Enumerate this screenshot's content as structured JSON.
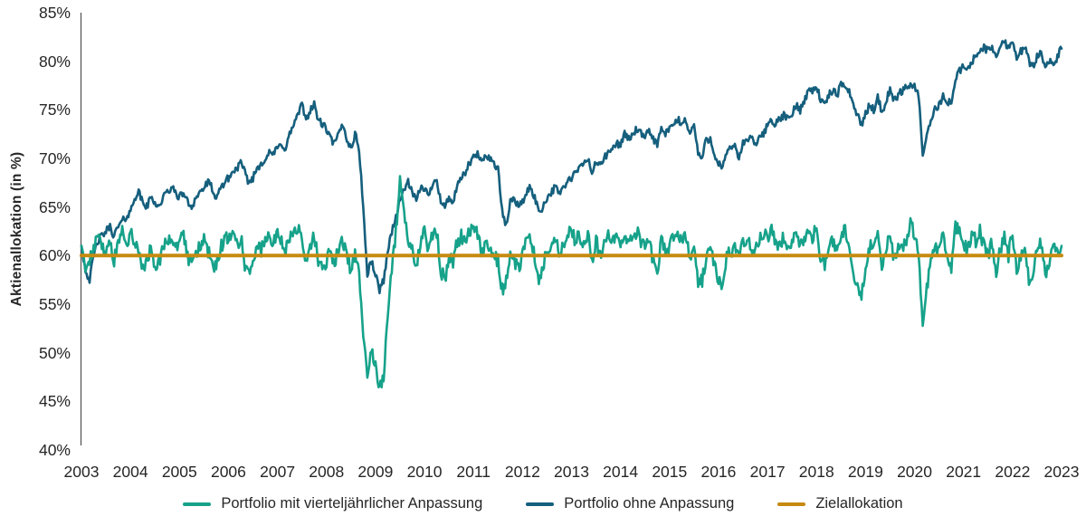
{
  "chart_data": {
    "type": "line",
    "title": "",
    "xlabel": "",
    "ylabel": "Aktienallokation (in %)",
    "ylim": [
      40,
      85
    ],
    "xlim": [
      2003,
      2023
    ],
    "grid": false,
    "legend_position": "bottom",
    "text_color": "#262626",
    "axis_color": "#58595B",
    "y_ticks": [
      "85%",
      "80%",
      "75%",
      "70%",
      "65%",
      "60%",
      "55%",
      "50%",
      "45%",
      "40%"
    ],
    "y_tick_values": [
      85,
      80,
      75,
      70,
      65,
      60,
      55,
      50,
      45,
      40
    ],
    "x_ticks": [
      "2003",
      "2004",
      "2005",
      "2006",
      "2007",
      "2008",
      "2009",
      "2010",
      "2011",
      "2012",
      "2013",
      "2014",
      "2015",
      "2016",
      "2017",
      "2018",
      "2019",
      "2020",
      "2021",
      "2022",
      "2023"
    ],
    "x_start_year": 2003,
    "x_step_months": 1,
    "series": [
      {
        "name": "Portfolio ohne Anpassung",
        "color": "#155F7D",
        "line_width": 2.6,
        "noise": 0.4,
        "values": [
          61.0,
          58.5,
          57.5,
          60.0,
          61.5,
          62.0,
          62.5,
          63.0,
          62.0,
          63.0,
          63.5,
          64.0,
          64.5,
          66.0,
          66.5,
          65.5,
          65.0,
          66.0,
          65.5,
          65.0,
          66.0,
          66.5,
          67.0,
          66.5,
          66.0,
          66.5,
          65.5,
          65.0,
          66.0,
          66.5,
          67.0,
          67.5,
          67.0,
          65.5,
          67.0,
          67.5,
          68.0,
          68.5,
          69.0,
          69.5,
          68.5,
          67.5,
          68.0,
          69.0,
          69.5,
          70.0,
          70.5,
          70.5,
          71.0,
          71.5,
          71.0,
          72.5,
          73.5,
          74.5,
          75.5,
          74.0,
          75.0,
          75.5,
          74.0,
          73.5,
          73.0,
          72.0,
          71.5,
          72.5,
          73.5,
          72.0,
          71.0,
          72.5,
          71.0,
          65.0,
          58.0,
          59.5,
          58.0,
          56.5,
          57.5,
          60.5,
          62.5,
          64.0,
          65.5,
          67.0,
          67.5,
          66.5,
          65.5,
          67.0,
          67.0,
          66.0,
          67.5,
          68.0,
          65.5,
          65.0,
          66.0,
          65.5,
          67.0,
          68.0,
          68.5,
          69.5,
          70.0,
          70.5,
          69.5,
          70.5,
          70.0,
          69.5,
          69.0,
          64.5,
          63.0,
          65.5,
          66.0,
          65.0,
          65.5,
          66.5,
          67.0,
          66.0,
          64.5,
          65.0,
          66.0,
          66.5,
          67.0,
          66.5,
          67.0,
          67.5,
          68.0,
          68.5,
          69.0,
          69.5,
          70.0,
          68.5,
          69.5,
          69.5,
          70.0,
          70.5,
          71.0,
          71.5,
          71.5,
          72.5,
          72.0,
          72.5,
          73.0,
          72.5,
          72.0,
          73.0,
          72.0,
          71.5,
          73.0,
          72.5,
          73.0,
          73.5,
          74.0,
          73.5,
          74.0,
          72.5,
          73.5,
          70.5,
          70.0,
          72.0,
          72.0,
          70.5,
          69.5,
          69.0,
          70.5,
          71.0,
          71.5,
          70.0,
          71.5,
          72.0,
          72.0,
          71.5,
          72.0,
          72.5,
          73.5,
          74.0,
          73.5,
          74.0,
          74.5,
          74.0,
          74.5,
          75.5,
          75.0,
          76.0,
          77.0,
          77.0,
          77.5,
          76.0,
          75.5,
          76.5,
          77.0,
          76.5,
          77.5,
          77.5,
          77.0,
          75.5,
          74.5,
          73.5,
          74.5,
          75.5,
          75.0,
          76.5,
          74.5,
          76.0,
          77.0,
          76.0,
          76.5,
          77.0,
          77.5,
          77.5,
          77.5,
          76.5,
          70.0,
          72.5,
          74.0,
          75.0,
          75.5,
          76.5,
          75.5,
          76.0,
          78.0,
          79.0,
          79.5,
          79.0,
          80.0,
          80.5,
          81.0,
          81.5,
          81.0,
          81.5,
          80.5,
          81.5,
          82.0,
          81.5,
          82.0,
          80.5,
          81.0,
          81.5,
          80.0,
          79.5,
          80.5,
          81.0,
          79.5,
          80.0,
          79.5,
          80.5,
          81.3
        ]
      },
      {
        "name": "Portfolio mit vierteljährlicher Anpassung",
        "color": "#16A28A",
        "line_width": 2.6,
        "noise": 0.75,
        "values": [
          61.0,
          58.5,
          59.5,
          61.0,
          62.0,
          61.0,
          60.5,
          61.5,
          59.5,
          61.0,
          62.5,
          60.5,
          62.5,
          61.5,
          60.0,
          58.5,
          59.5,
          61.0,
          58.5,
          59.5,
          60.5,
          61.5,
          62.0,
          60.5,
          61.5,
          62.0,
          60.0,
          59.0,
          60.5,
          61.0,
          62.0,
          60.5,
          59.5,
          58.5,
          61.0,
          61.5,
          62.0,
          62.5,
          61.0,
          62.0,
          59.0,
          58.0,
          59.5,
          61.0,
          60.5,
          61.5,
          62.0,
          61.0,
          62.5,
          61.5,
          60.5,
          62.0,
          62.5,
          63.0,
          61.5,
          59.5,
          61.0,
          62.0,
          59.5,
          58.5,
          59.5,
          60.5,
          59.0,
          61.0,
          61.5,
          60.0,
          58.5,
          60.0,
          58.0,
          51.5,
          47.5,
          50.0,
          48.5,
          46.5,
          47.5,
          53.5,
          58.5,
          62.5,
          67.5,
          64.0,
          62.0,
          60.5,
          59.0,
          61.5,
          62.5,
          60.5,
          62.0,
          62.5,
          58.5,
          57.5,
          60.0,
          59.0,
          61.5,
          62.0,
          61.0,
          62.5,
          63.0,
          62.0,
          60.5,
          61.5,
          61.0,
          60.0,
          59.5,
          56.5,
          57.5,
          60.5,
          59.5,
          58.5,
          60.0,
          61.5,
          62.0,
          60.0,
          57.5,
          59.0,
          60.5,
          61.0,
          61.5,
          60.5,
          61.0,
          62.0,
          62.5,
          61.5,
          62.0,
          61.0,
          62.5,
          59.5,
          61.5,
          60.0,
          61.0,
          62.0,
          61.5,
          62.5,
          61.0,
          62.5,
          61.5,
          62.0,
          62.5,
          61.5,
          60.5,
          61.5,
          59.5,
          58.5,
          61.5,
          60.5,
          61.0,
          62.0,
          62.5,
          61.0,
          62.0,
          60.0,
          61.0,
          57.0,
          57.5,
          60.0,
          61.0,
          59.0,
          57.5,
          57.0,
          60.0,
          60.5,
          61.0,
          59.5,
          61.5,
          62.0,
          61.0,
          60.5,
          61.5,
          62.0,
          62.0,
          62.5,
          61.5,
          61.0,
          62.0,
          61.0,
          61.5,
          62.0,
          61.0,
          62.0,
          62.5,
          61.5,
          63.5,
          59.5,
          59.0,
          60.5,
          61.5,
          60.5,
          62.0,
          62.5,
          61.5,
          58.0,
          57.0,
          55.5,
          59.0,
          61.0,
          60.5,
          62.0,
          58.5,
          61.0,
          62.0,
          59.5,
          60.5,
          61.0,
          61.5,
          63.5,
          62.0,
          60.0,
          53.0,
          56.5,
          59.5,
          61.0,
          60.5,
          62.5,
          59.5,
          58.5,
          63.0,
          62.5,
          61.5,
          60.5,
          62.0,
          61.5,
          62.5,
          61.0,
          60.0,
          61.5,
          58.5,
          60.5,
          62.0,
          60.0,
          62.5,
          58.5,
          60.0,
          61.0,
          57.5,
          58.0,
          61.0,
          61.5,
          58.0,
          59.5,
          61.5,
          60.0,
          61.0
        ]
      },
      {
        "name": "Zielallokation",
        "color": "#C68A10",
        "line_width": 4,
        "noise": 0,
        "constant": 60
      }
    ],
    "legend_order": [
      1,
      0,
      2
    ]
  }
}
